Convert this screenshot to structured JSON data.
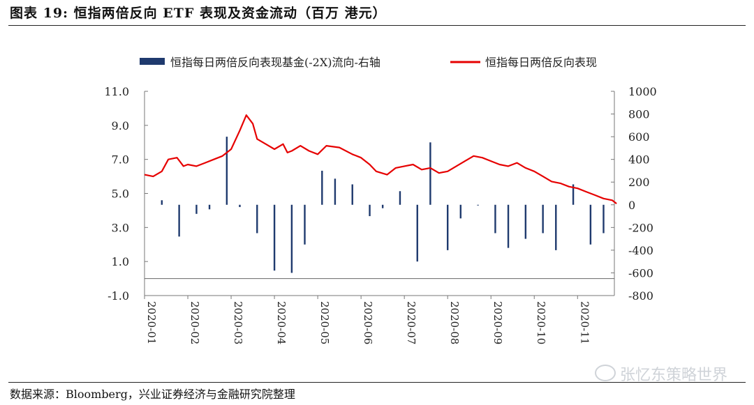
{
  "header": {
    "title": "图表 19: 恒指两倍反向 ETF 表现及资金流动（百万 港元）"
  },
  "footer": {
    "source": "数据来源：Bloomberg，兴业证券经济与金融研究院整理",
    "watermark": "张忆东策略世界"
  },
  "chart_data": {
    "type": "bar+line",
    "title": "",
    "legend_position": "top",
    "grid": false,
    "categories": [
      "2020-01",
      "2020-02",
      "2020-03",
      "2020-04",
      "2020-05",
      "2020-06",
      "2020-07",
      "2020-08",
      "2020-09",
      "2020-10",
      "2020-11"
    ],
    "left_axis": {
      "min": -1.0,
      "max": 11.0,
      "ticks": [
        "11.0",
        "9.0",
        "7.0",
        "5.0",
        "3.0",
        "1.0",
        "-1.0"
      ],
      "tick_values": [
        11,
        9,
        7,
        5,
        3,
        1,
        -1
      ]
    },
    "right_axis": {
      "min": -800,
      "max": 1000,
      "ticks": [
        "1000",
        "800",
        "600",
        "400",
        "200",
        "0",
        "-200",
        "-400",
        "-600",
        "-800"
      ],
      "tick_values": [
        1000,
        800,
        600,
        400,
        200,
        0,
        -200,
        -400,
        -600,
        -800
      ]
    },
    "series": [
      {
        "name": "恒指每日两倍反向表现基金(-2X)流向-右轴",
        "type": "bar",
        "axis": "right",
        "color": "#1f3a6e",
        "x": [
          0.4,
          0.8,
          1.2,
          1.5,
          1.9,
          2.2,
          2.6,
          3.0,
          3.4,
          3.7,
          4.1,
          4.4,
          4.8,
          5.2,
          5.5,
          5.9,
          6.3,
          6.6,
          7.0,
          7.3,
          7.7,
          8.1,
          8.4,
          8.8,
          9.2,
          9.5,
          9.9,
          10.3,
          10.6
        ],
        "values": [
          40,
          -280,
          -80,
          -40,
          600,
          -20,
          -250,
          -580,
          -600,
          -350,
          300,
          230,
          180,
          -100,
          -30,
          120,
          -500,
          550,
          -400,
          -120,
          0,
          -250,
          -380,
          -300,
          -250,
          -400,
          180,
          -350,
          -250
        ]
      },
      {
        "name": "恒指每日两倍反向表现",
        "type": "line",
        "axis": "left",
        "color": "#e60000",
        "x": [
          0.0,
          0.2,
          0.4,
          0.55,
          0.75,
          0.9,
          1.0,
          1.2,
          1.4,
          1.6,
          1.8,
          2.0,
          2.2,
          2.35,
          2.5,
          2.6,
          2.8,
          3.0,
          3.2,
          3.3,
          3.4,
          3.6,
          3.8,
          4.0,
          4.2,
          4.5,
          4.8,
          5.0,
          5.2,
          5.35,
          5.6,
          5.8,
          6.0,
          6.2,
          6.4,
          6.6,
          6.8,
          7.0,
          7.2,
          7.4,
          7.6,
          7.8,
          8.0,
          8.2,
          8.4,
          8.6,
          8.8,
          9.0,
          9.2,
          9.4,
          9.6,
          9.8,
          10.0,
          10.2,
          10.4,
          10.6,
          10.8,
          10.9
        ],
        "values": [
          6.1,
          6.0,
          6.3,
          7.0,
          7.1,
          6.6,
          6.7,
          6.6,
          6.8,
          7.0,
          7.2,
          7.6,
          8.7,
          9.6,
          9.1,
          8.2,
          7.9,
          7.6,
          7.9,
          7.4,
          7.5,
          7.8,
          7.5,
          7.3,
          7.8,
          7.7,
          7.3,
          7.1,
          6.7,
          6.3,
          6.1,
          6.5,
          6.6,
          6.7,
          6.4,
          6.5,
          6.2,
          6.3,
          6.6,
          6.9,
          7.2,
          7.1,
          6.9,
          6.7,
          6.6,
          6.8,
          6.5,
          6.3,
          6.0,
          5.7,
          5.6,
          5.4,
          5.3,
          5.1,
          4.9,
          4.7,
          4.6,
          4.4
        ]
      }
    ],
    "legend": [
      {
        "label": "恒指每日两倍反向表现基金(-2X)流向-右轴",
        "marker": "bar",
        "color": "#1f3a6e"
      },
      {
        "label": "恒指每日两倍反向表现",
        "marker": "line",
        "color": "#e60000"
      }
    ]
  }
}
